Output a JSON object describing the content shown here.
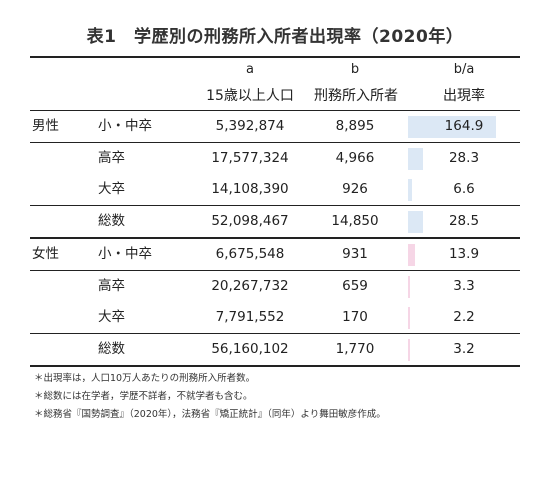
{
  "title": "表1　学歴別の刑務所入所者出現率（2020年）",
  "header": {
    "col_a_letter": "a",
    "col_b_letter": "b",
    "col_ratio_letter": "b/a",
    "col_a_label": "15歳以上人口",
    "col_b_label": "刑務所入所者",
    "col_ratio_label": "出現率"
  },
  "bar_max": 164.9,
  "colors": {
    "male_bar": "#dce8f5",
    "female_bar": "#f6d6e6"
  },
  "rows": [
    {
      "group": "男性",
      "edu": "小・中卒",
      "pop": "5,392,874",
      "inmates": "8,895",
      "rate_label": "164.9",
      "rate": 164.9
    },
    {
      "group": "",
      "edu": "高卒",
      "pop": "17,577,324",
      "inmates": "4,966",
      "rate_label": "28.3",
      "rate": 28.3
    },
    {
      "group": "",
      "edu": "大卒",
      "pop": "14,108,390",
      "inmates": "926",
      "rate_label": "6.6",
      "rate": 6.6
    },
    {
      "group": "",
      "edu": "総数",
      "pop": "52,098,467",
      "inmates": "14,850",
      "rate_label": "28.5",
      "rate": 28.5
    },
    {
      "group": "女性",
      "edu": "小・中卒",
      "pop": "6,675,548",
      "inmates": "931",
      "rate_label": "13.9",
      "rate": 13.9
    },
    {
      "group": "",
      "edu": "高卒",
      "pop": "20,267,732",
      "inmates": "659",
      "rate_label": "3.3",
      "rate": 3.3
    },
    {
      "group": "",
      "edu": "大卒",
      "pop": "7,791,552",
      "inmates": "170",
      "rate_label": "2.2",
      "rate": 2.2
    },
    {
      "group": "",
      "edu": "総数",
      "pop": "56,160,102",
      "inmates": "1,770",
      "rate_label": "3.2",
      "rate": 3.2
    }
  ],
  "notes": [
    "＊出現率は，人口10万人あたりの刑務所入所者数。",
    "＊総数には在学者，学歴不詳者，不就学者も含む。",
    "＊総務省『国勢調査』（2020年），法務省『矯正統計』（同年）より舞田敏彦作成。"
  ]
}
